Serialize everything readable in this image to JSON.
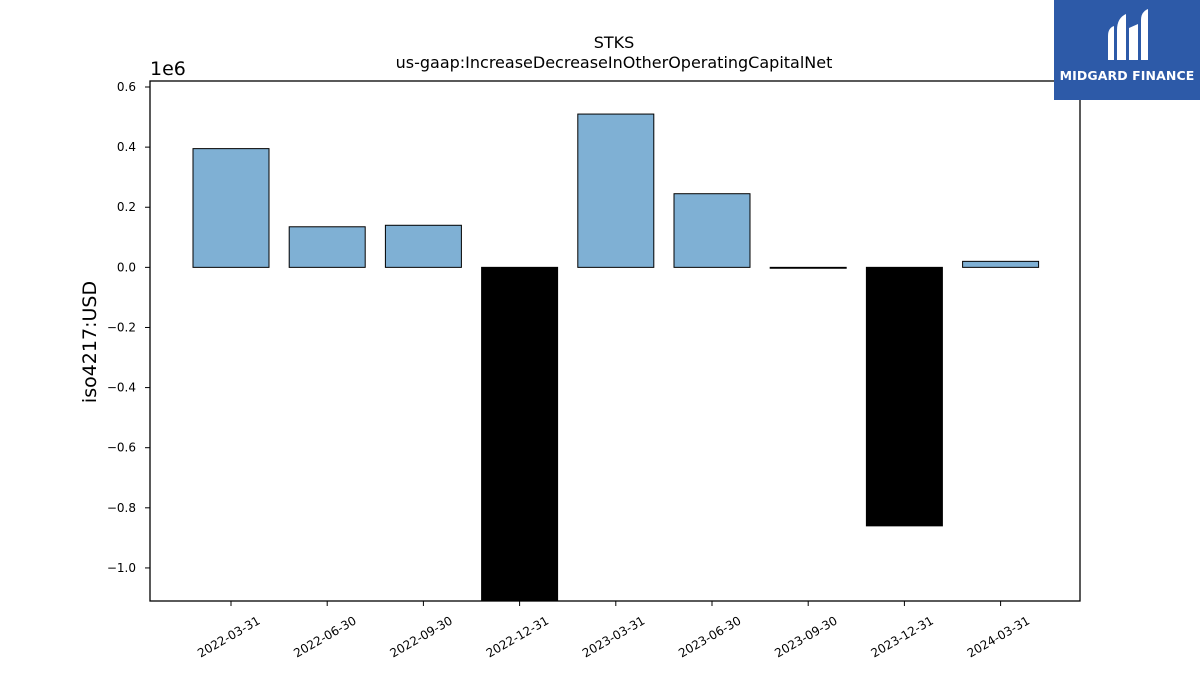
{
  "chart_data": {
    "type": "bar",
    "title": "STKS",
    "subtitle": "us-gaap:IncreaseDecreaseInOtherOperatingCapitalNet",
    "xlabel": "",
    "ylabel": "iso4217:USD",
    "y_offset_label": "1e6",
    "ylim": [
      -1.11,
      0.62
    ],
    "yticks": [
      0.6,
      0.4,
      0.2,
      0.0,
      -0.2,
      -0.4,
      -0.6,
      -0.8,
      -1.0
    ],
    "ytick_labels": [
      "0.6",
      "0.4",
      "0.2",
      "0.0",
      "−0.2",
      "−0.4",
      "−0.6",
      "−0.8",
      "−1.0"
    ],
    "categories": [
      "2022-03-31",
      "2022-06-30",
      "2022-09-30",
      "2022-12-31",
      "2023-03-31",
      "2023-06-30",
      "2023-09-30",
      "2023-12-31",
      "2024-03-31"
    ],
    "values": [
      0.395,
      0.135,
      0.14,
      -1.13,
      0.51,
      0.245,
      -0.003,
      -0.86,
      0.02
    ],
    "positive_color": "#7fb0d4",
    "negative_color": "#000000",
    "grid": false,
    "legend": "none"
  },
  "logo": {
    "text": "MIDGARD FINANCE",
    "color": "#2d5aa8"
  }
}
